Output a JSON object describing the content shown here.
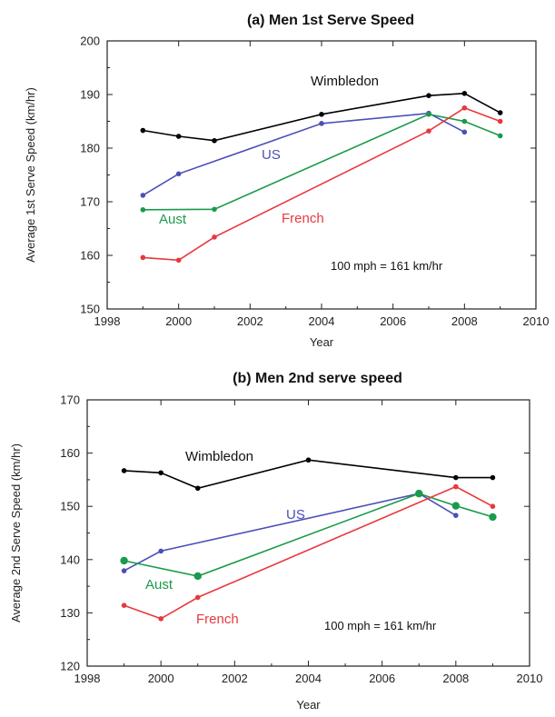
{
  "chart_data": [
    {
      "type": "line",
      "title": "(a) Men 1st Serve Speed",
      "xlabel": "Year",
      "ylabel": "Average 1st Serve Speed  (km/hr)",
      "xlim": [
        1998,
        2010
      ],
      "ylim": [
        150,
        200
      ],
      "xticks": [
        "1998",
        "2000",
        "2002",
        "2004",
        "2006",
        "2008",
        "2010"
      ],
      "yticks": [
        "150",
        "160",
        "170",
        "180",
        "190",
        "200"
      ],
      "annotation": "100 mph = 161 km/hr",
      "grid": false,
      "series": [
        {
          "name": "Wimbledon",
          "color": "#000000",
          "x": [
            1999,
            2000,
            2001,
            2004,
            2007,
            2008,
            2009
          ],
          "y": [
            183.3,
            182.2,
            181.4,
            186.3,
            189.8,
            190.2,
            186.6
          ]
        },
        {
          "name": "US",
          "color": "#4b4fb8",
          "x": [
            1999,
            2000,
            2004,
            2007,
            2008
          ],
          "y": [
            171.2,
            175.2,
            184.6,
            186.5,
            183.0
          ]
        },
        {
          "name": "Aust",
          "color": "#1a9a4a",
          "x": [
            1999,
            2001,
            2007,
            2008,
            2009
          ],
          "y": [
            168.5,
            168.6,
            186.3,
            185.0,
            182.3
          ]
        },
        {
          "name": "French",
          "color": "#e8383d",
          "x": [
            1999,
            2000,
            2001,
            2007,
            2008,
            2009
          ],
          "y": [
            159.6,
            159.1,
            163.4,
            183.2,
            187.5,
            185.0
          ]
        }
      ]
    },
    {
      "type": "line",
      "title": "(b) Men 2nd serve speed",
      "xlabel": "Year",
      "ylabel": "Average 2nd Serve Speed  (km/hr)",
      "xlim": [
        1998,
        2010
      ],
      "ylim": [
        120,
        170
      ],
      "xticks": [
        "1998",
        "2000",
        "2002",
        "2004",
        "2006",
        "2008",
        "2010"
      ],
      "yticks": [
        "120",
        "130",
        "140",
        "150",
        "160",
        "170"
      ],
      "annotation": "100 mph = 161 km/hr",
      "grid": false,
      "series": [
        {
          "name": "Wimbledon",
          "color": "#000000",
          "x": [
            1999,
            2000,
            2001,
            2004,
            2008,
            2009
          ],
          "y": [
            156.7,
            156.3,
            153.4,
            158.7,
            155.4,
            155.4
          ]
        },
        {
          "name": "US",
          "color": "#4b4fb8",
          "x": [
            1999,
            2000,
            2007,
            2008
          ],
          "y": [
            137.9,
            141.6,
            152.4,
            148.3
          ]
        },
        {
          "name": "Aust",
          "color": "#1a9a4a",
          "x": [
            1999,
            2001,
            2007,
            2008,
            2009
          ],
          "y": [
            139.8,
            136.9,
            152.4,
            150.1,
            148.0
          ]
        },
        {
          "name": "French",
          "color": "#e8383d",
          "x": [
            1999,
            2000,
            2001,
            2008,
            2009
          ],
          "y": [
            131.4,
            128.9,
            132.9,
            153.7,
            150.0
          ]
        }
      ]
    }
  ]
}
